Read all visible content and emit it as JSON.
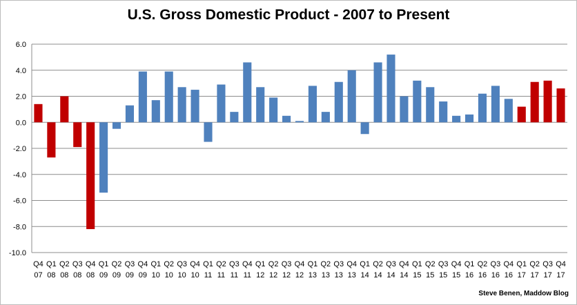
{
  "chart_data": {
    "type": "bar",
    "title": "U.S. Gross Domestic Product - 2007 to Present",
    "xlabel": "",
    "ylabel": "",
    "ylim": [
      -10.0,
      6.0
    ],
    "yticks": [
      "6.0",
      "4.0",
      "2.0",
      "0.0",
      "-2.0",
      "-4.0",
      "-6.0",
      "-8.0",
      "-10.0"
    ],
    "grid": true,
    "categories": [
      "Q4 07",
      "Q1 08",
      "Q2 08",
      "Q3 08",
      "Q4 08",
      "Q1 09",
      "Q2 09",
      "Q3 09",
      "Q4 09",
      "Q1 10",
      "Q2 10",
      "Q3 10",
      "Q4 10",
      "Q1 11",
      "Q2 11",
      "Q3 11",
      "Q4 11",
      "Q1 12",
      "Q2 12",
      "Q3 12",
      "Q4 12",
      "Q1 13",
      "Q2 13",
      "Q3 13",
      "Q4 13",
      "Q1 14",
      "Q2 14",
      "Q3 14",
      "Q4 14",
      "Q1 15",
      "Q2 15",
      "Q3 15",
      "Q4 15",
      "Q1 16",
      "Q2 16",
      "Q3 16",
      "Q4 16",
      "Q1 17",
      "Q2 17",
      "Q3 17",
      "Q4 17"
    ],
    "values": [
      1.4,
      -2.7,
      2.0,
      -1.9,
      -8.2,
      -5.4,
      -0.5,
      1.3,
      3.9,
      1.7,
      3.9,
      2.7,
      2.5,
      -1.5,
      2.9,
      0.8,
      4.6,
      2.7,
      1.9,
      0.5,
      0.1,
      2.8,
      0.8,
      3.1,
      4.0,
      -0.9,
      4.6,
      5.2,
      2.0,
      3.2,
      2.7,
      1.6,
      0.5,
      0.6,
      2.2,
      2.8,
      1.8,
      1.2,
      3.1,
      3.2,
      2.6
    ],
    "colors": {
      "red": "#c00000",
      "blue": "#4f81bd",
      "red_indices": [
        0,
        1,
        2,
        3,
        4,
        37,
        38,
        39,
        40
      ]
    }
  },
  "credit": "Steve Benen, Maddow Blog"
}
